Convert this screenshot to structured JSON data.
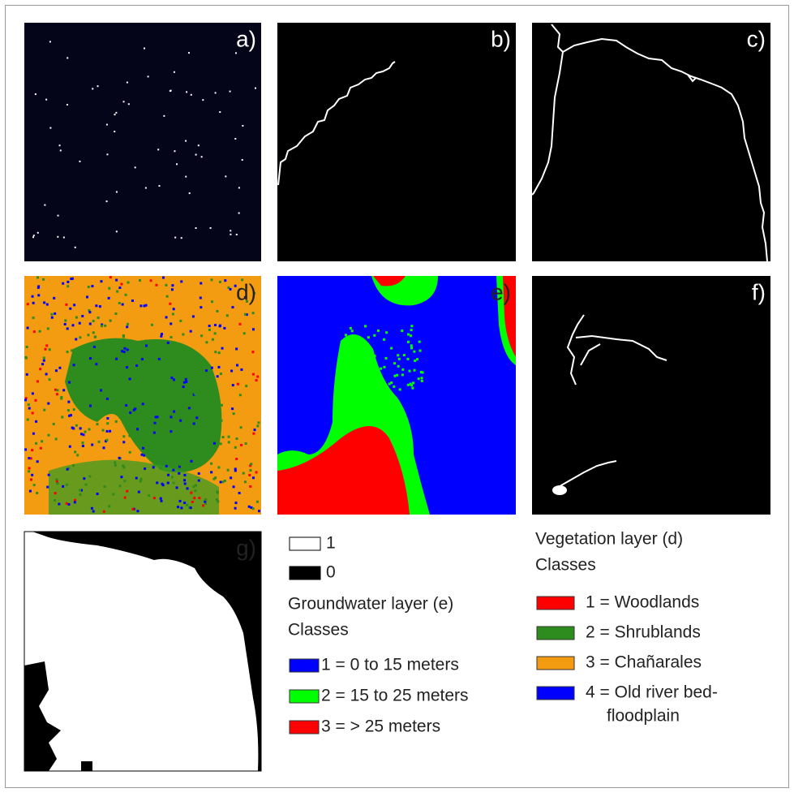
{
  "panels": [
    {
      "label": "a)"
    },
    {
      "label": "b)"
    },
    {
      "label": "c)"
    },
    {
      "label": "d)"
    },
    {
      "label": "e)"
    },
    {
      "label": "f)"
    },
    {
      "label": "g)"
    }
  ],
  "binary_legend": {
    "items": [
      {
        "label": "1",
        "color": "#ffffff"
      },
      {
        "label": "0",
        "color": "#000000"
      }
    ]
  },
  "groundwater_legend": {
    "title": "Groundwater layer (e)",
    "subtitle": "Classes",
    "items": [
      {
        "lines": [
          "1 = 0 to 15 meters"
        ],
        "color": "#0000ff"
      },
      {
        "lines": [
          "2 = 15 to 25 meters"
        ],
        "color": "#00ff00"
      },
      {
        "lines": [
          "3 = > 25 meters"
        ],
        "color": "#ff0000"
      }
    ]
  },
  "vegetation_legend": {
    "title": "Vegetation layer (d)",
    "subtitle": "Classes",
    "items": [
      {
        "lines": [
          "1 = Woodlands"
        ],
        "color": "#ff0000"
      },
      {
        "lines": [
          "2 = Shrublands"
        ],
        "color": "#2e8b1e"
      },
      {
        "lines": [
          "3 = Chañarales"
        ],
        "color": "#f39c12"
      },
      {
        "lines": [
          "4 = Old river bed-",
          "floodplain"
        ],
        "color": "#0000ff"
      }
    ]
  }
}
